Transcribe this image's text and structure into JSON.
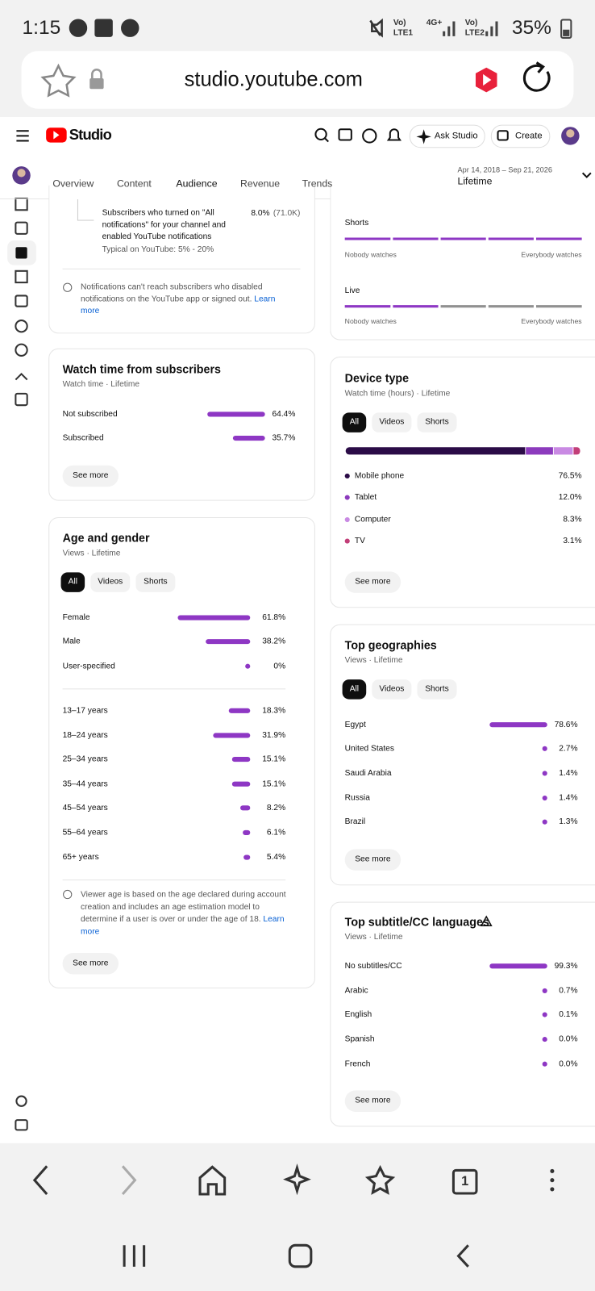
{
  "status_bar": {
    "time": "1:15",
    "network": [
      "Vo)",
      "LTE1",
      "4G+",
      "Vo)",
      "LTE2"
    ],
    "battery": "35%"
  },
  "browser": {
    "url": "studio.youtube.com",
    "tabs_count": "1"
  },
  "header": {
    "logo": "Studio",
    "ask": "Ask Studio",
    "create": "Create"
  },
  "tabs": [
    "Overview",
    "Content",
    "Audience",
    "Revenue",
    "Trends"
  ],
  "date_range": {
    "dates": "Apr 14, 2018 – Sep 21, 2026",
    "label": "Lifetime"
  },
  "notifications_card": {
    "text": "Subscribers who turned on \"All notifications\" for your channel and enabled YouTube notifications",
    "typical": "Typical on YouTube: 5% - 20%",
    "value": "8.0%",
    "count": "(71.0K)",
    "note": "Notifications can't reach subscribers who disabled notifications on the YouTube app or signed out.",
    "link": "Learn more"
  },
  "watchers_card": {
    "rows": [
      {
        "label": "Shorts",
        "low": "Nobody watches",
        "high": "Everybody watches"
      },
      {
        "label": "Live",
        "low": "Nobody watches",
        "high": "Everybody watches"
      }
    ]
  },
  "watch_time_card": {
    "title": "Watch time from subscribers",
    "subtitle": "Watch time · Lifetime",
    "rows": [
      {
        "label": "Not subscribed",
        "value": 64.4,
        "value_label": "64.4%"
      },
      {
        "label": "Subscribed",
        "value": 35.7,
        "value_label": "35.7%"
      }
    ],
    "button": "See more"
  },
  "age_gender_card": {
    "title": "Age and gender",
    "subtitle": "Views · Lifetime",
    "filters": [
      "All",
      "Videos",
      "Shorts"
    ],
    "gender_rows": [
      {
        "label": "Female",
        "value": 61.8,
        "value_label": "61.8%"
      },
      {
        "label": "Male",
        "value": 38.2,
        "value_label": "38.2%"
      },
      {
        "label": "User-specified",
        "value": 0,
        "value_label": "0%"
      }
    ],
    "age_rows": [
      {
        "label": "13–17 years",
        "value": 18.3,
        "value_label": "18.3%"
      },
      {
        "label": "18–24 years",
        "value": 31.9,
        "value_label": "31.9%"
      },
      {
        "label": "25–34 years",
        "value": 15.1,
        "value_label": "15.1%"
      },
      {
        "label": "35–44 years",
        "value": 15.1,
        "value_label": "15.1%"
      },
      {
        "label": "45–54 years",
        "value": 8.2,
        "value_label": "8.2%"
      },
      {
        "label": "55–64 years",
        "value": 6.1,
        "value_label": "6.1%"
      },
      {
        "label": "65+ years",
        "value": 5.4,
        "value_label": "5.4%"
      }
    ],
    "note": "Viewer age is based on the age declared during account creation and includes an age estimation model to determine if a user is over or under the age of 18.",
    "link": "Learn more",
    "button": "See more"
  },
  "device_card": {
    "title": "Device type",
    "subtitle": "Watch time (hours) · Lifetime",
    "filters": [
      "All",
      "Videos",
      "Shorts"
    ],
    "rows": [
      {
        "label": "Mobile phone",
        "value": 76.5,
        "value_label": "76.5%",
        "color": "#2b0c47"
      },
      {
        "label": "Tablet",
        "value": 12.0,
        "value_label": "12.0%",
        "color": "#8c3bbd"
      },
      {
        "label": "Computer",
        "value": 8.3,
        "value_label": "8.3%",
        "color": "#c98ae3"
      },
      {
        "label": "TV",
        "value": 3.1,
        "value_label": "3.1%",
        "color": "#c23e78"
      }
    ],
    "button": "See more"
  },
  "geo_card": {
    "title": "Top geographies",
    "subtitle": "Views · Lifetime",
    "filters": [
      "All",
      "Videos",
      "Shorts"
    ],
    "rows": [
      {
        "label": "Egypt",
        "value": 78.6,
        "value_label": "78.6%"
      },
      {
        "label": "United States",
        "value": 2.7,
        "value_label": "2.7%"
      },
      {
        "label": "Saudi Arabia",
        "value": 1.4,
        "value_label": "1.4%"
      },
      {
        "label": "Russia",
        "value": 1.4,
        "value_label": "1.4%"
      },
      {
        "label": "Brazil",
        "value": 1.3,
        "value_label": "1.3%"
      }
    ],
    "button": "See more"
  },
  "subtitle_card": {
    "title": "Top subtitle/CC languages",
    "subtitle": "Views · Lifetime",
    "rows": [
      {
        "label": "No subtitles/CC",
        "value": 99.3,
        "value_label": "99.3%"
      },
      {
        "label": "Arabic",
        "value": 0.7,
        "value_label": "0.7%"
      },
      {
        "label": "English",
        "value": 0.1,
        "value_label": "0.1%"
      },
      {
        "label": "Spanish",
        "value": 0.0,
        "value_label": "0.0%"
      },
      {
        "label": "French",
        "value": 0.0,
        "value_label": "0.0%"
      }
    ],
    "button": "See more"
  }
}
